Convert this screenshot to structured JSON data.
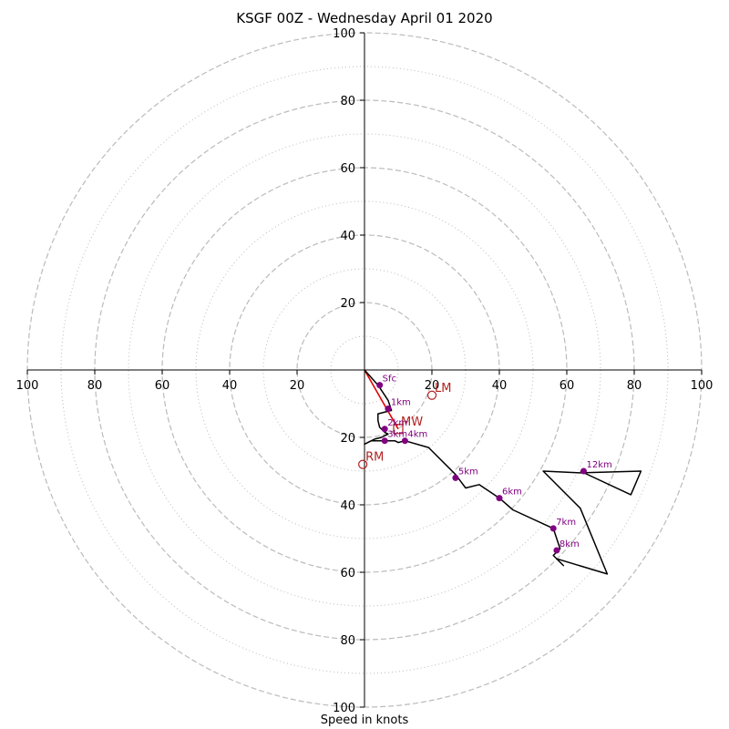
{
  "chart_data": {
    "type": "hodograph",
    "title": "KSGF 00Z - Wednesday April 01 2020",
    "xlabel": "Speed in knots",
    "ylabel": "",
    "units": "knots",
    "range": [
      -100,
      100
    ],
    "ring_major_knots": [
      20,
      40,
      60,
      80,
      100
    ],
    "ring_minor_knots": [
      10,
      30,
      50,
      70,
      90
    ],
    "grid": true,
    "tick_labels": {
      "x": [
        "100",
        "80",
        "60",
        "40",
        "20",
        "20",
        "40",
        "60",
        "80",
        "100"
      ],
      "y": [
        "100",
        "80",
        "60",
        "40",
        "20",
        "20",
        "40",
        "60",
        "80",
        "100"
      ]
    },
    "colors": {
      "trace": "#000000",
      "height_marker": "#800080",
      "storm_motion": "#b22222",
      "shear_vector": "#e00000",
      "grid": "#bbbbbb"
    },
    "trace_uv": [
      [
        0,
        0
      ],
      [
        4,
        -4.5
      ],
      [
        7,
        -9
      ],
      [
        8,
        -12
      ],
      [
        4,
        -13
      ],
      [
        4,
        -15
      ],
      [
        4.5,
        -17
      ],
      [
        6,
        -18.5
      ],
      [
        7,
        -19
      ],
      [
        5,
        -20
      ],
      [
        3,
        -20.5
      ],
      [
        0,
        -22
      ],
      [
        2,
        -21
      ],
      [
        5,
        -21
      ],
      [
        7.5,
        -21
      ],
      [
        9,
        -21
      ],
      [
        10,
        -21.5
      ],
      [
        12,
        -21
      ],
      [
        19,
        -23
      ],
      [
        27,
        -31
      ],
      [
        30,
        -35
      ],
      [
        34,
        -34
      ],
      [
        40,
        -38
      ],
      [
        44,
        -41.5
      ],
      [
        56,
        -47
      ],
      [
        58,
        -53
      ],
      [
        56,
        -55
      ],
      [
        59,
        -58
      ],
      [
        57,
        -56
      ],
      [
        72,
        -60.5
      ],
      [
        64,
        -41
      ],
      [
        53,
        -30
      ],
      [
        64,
        -30.5
      ],
      [
        82,
        -30
      ],
      [
        79,
        -37
      ],
      [
        64,
        -30
      ]
    ],
    "height_markers": [
      {
        "label": "Sfc",
        "u": 4.5,
        "v": -4.5
      },
      {
        "label": "1km",
        "u": 7,
        "v": -11.5
      },
      {
        "label": "2km",
        "u": 6,
        "v": -17.5
      },
      {
        "label": "3km",
        "u": 6,
        "v": -21
      },
      {
        "label": "4km",
        "u": 12,
        "v": -21
      },
      {
        "label": "5km",
        "u": 27,
        "v": -32
      },
      {
        "label": "6km",
        "u": 40,
        "v": -38
      },
      {
        "label": "7km",
        "u": 56,
        "v": -47
      },
      {
        "label": "8km",
        "u": 57,
        "v": -53.5
      },
      {
        "label": "12km",
        "u": 65,
        "v": -30
      }
    ],
    "storm_motions": [
      {
        "label": "LM",
        "u": 20,
        "v": -7.5,
        "marker": "circle"
      },
      {
        "label": "MW",
        "u": 10,
        "v": -17.5,
        "marker": "square"
      },
      {
        "label": "RM",
        "u": -0.5,
        "v": -28,
        "marker": "circle"
      }
    ],
    "shear_vector": {
      "from": [
        0,
        0
      ],
      "to": [
        10,
        -17.5
      ]
    }
  }
}
